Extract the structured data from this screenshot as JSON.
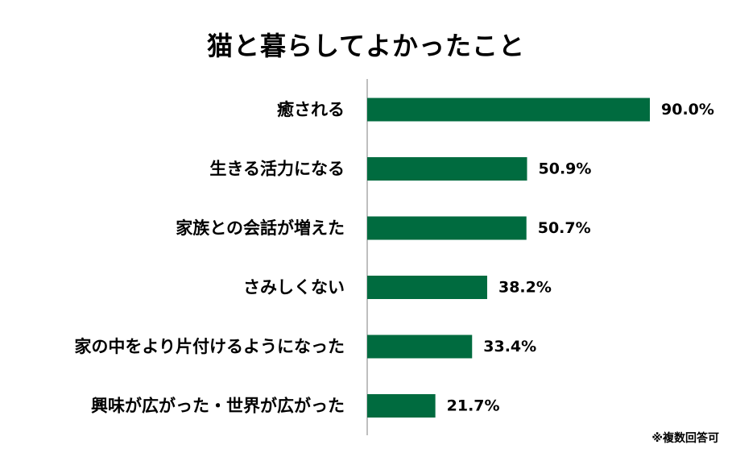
{
  "chart_data": {
    "type": "bar",
    "orientation": "horizontal",
    "title": "猫と暮らしてよかったこと",
    "categories": [
      "癒される",
      "生きる活力になる",
      "家族との会話が増えた",
      "さみしくない",
      "家の中をより片付けるようになった",
      "興味が広がった・世界が広がった"
    ],
    "values": [
      90.0,
      50.9,
      50.7,
      38.2,
      33.4,
      21.7
    ],
    "value_labels": [
      "90.0%",
      "50.9%",
      "50.7%",
      "38.2%",
      "33.4%",
      "21.7%"
    ],
    "xlim": [
      0,
      100
    ],
    "grid": false,
    "bar_color": "#006B3F",
    "axis_color": "#7F7F7F",
    "footnote": "※複数回答可"
  }
}
